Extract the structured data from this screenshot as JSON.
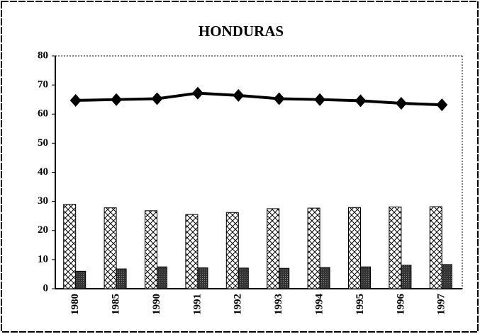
{
  "chart_data": {
    "type": "bar",
    "title": "HONDURAS",
    "categories": [
      "1980",
      "1985",
      "1990",
      "1991",
      "1992",
      "1993",
      "1994",
      "1995",
      "1996",
      "1997"
    ],
    "series": [
      {
        "type": "bar",
        "color": "#ffffff",
        "values": [
          29,
          27.8,
          26.8,
          25.5,
          26.2,
          27.5,
          27.7,
          27.9,
          28.1,
          28.2
        ]
      },
      {
        "type": "bar",
        "color": "#333333",
        "values": [
          6,
          6.8,
          7.5,
          7.2,
          7.1,
          7,
          7.3,
          7.5,
          8.1,
          8.3
        ]
      },
      {
        "type": "line",
        "color": "#000000",
        "values": [
          64.7,
          65,
          65.3,
          67.2,
          66.4,
          65.3,
          65,
          64.6,
          63.7,
          63.2
        ]
      }
    ],
    "ylim": [
      0,
      80
    ],
    "yticks": [
      0,
      10,
      20,
      30,
      40,
      50,
      60,
      70,
      80
    ],
    "grid": false
  }
}
